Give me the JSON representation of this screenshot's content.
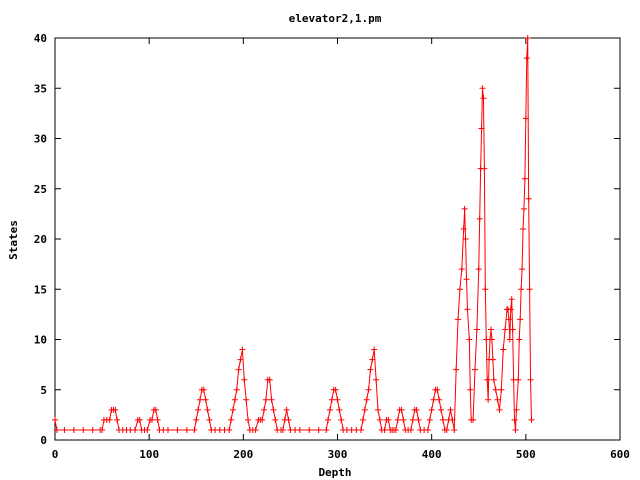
{
  "chart_data": {
    "type": "line",
    "title": "elevator2,1.pm",
    "xlabel": "Depth",
    "ylabel": "States",
    "xlim": [
      0,
      600
    ],
    "ylim": [
      0,
      40
    ],
    "xticks": [
      0,
      100,
      200,
      300,
      400,
      500,
      600
    ],
    "yticks": [
      0,
      5,
      10,
      15,
      20,
      25,
      30,
      35,
      40
    ],
    "grid": false,
    "legend": "none",
    "series_color": "#ff0000",
    "point_marker": "plus",
    "series": [
      {
        "points": [
          [
            0,
            2
          ],
          [
            2,
            1
          ],
          [
            10,
            1
          ],
          [
            20,
            1
          ],
          [
            30,
            1
          ],
          [
            40,
            1
          ],
          [
            48,
            1
          ],
          [
            50,
            1
          ],
          [
            52,
            2
          ],
          [
            55,
            2
          ],
          [
            58,
            2
          ],
          [
            60,
            3
          ],
          [
            62,
            3
          ],
          [
            64,
            3
          ],
          [
            66,
            2
          ],
          [
            68,
            1
          ],
          [
            72,
            1
          ],
          [
            76,
            1
          ],
          [
            80,
            1
          ],
          [
            85,
            1
          ],
          [
            88,
            2
          ],
          [
            90,
            2
          ],
          [
            92,
            1
          ],
          [
            95,
            1
          ],
          [
            98,
            1
          ],
          [
            101,
            2
          ],
          [
            103,
            2
          ],
          [
            105,
            3
          ],
          [
            107,
            3
          ],
          [
            109,
            2
          ],
          [
            111,
            1
          ],
          [
            115,
            1
          ],
          [
            120,
            1
          ],
          [
            130,
            1
          ],
          [
            140,
            1
          ],
          [
            148,
            1
          ],
          [
            150,
            2
          ],
          [
            152,
            3
          ],
          [
            154,
            4
          ],
          [
            156,
            5
          ],
          [
            158,
            5
          ],
          [
            160,
            4
          ],
          [
            162,
            3
          ],
          [
            164,
            2
          ],
          [
            166,
            1
          ],
          [
            170,
            1
          ],
          [
            175,
            1
          ],
          [
            180,
            1
          ],
          [
            185,
            1
          ],
          [
            187,
            2
          ],
          [
            189,
            3
          ],
          [
            191,
            4
          ],
          [
            193,
            5
          ],
          [
            195,
            7
          ],
          [
            197,
            8
          ],
          [
            199,
            9
          ],
          [
            201,
            6
          ],
          [
            203,
            4
          ],
          [
            205,
            2
          ],
          [
            207,
            1
          ],
          [
            210,
            1
          ],
          [
            213,
            1
          ],
          [
            216,
            2
          ],
          [
            218,
            2
          ],
          [
            220,
            2
          ],
          [
            222,
            3
          ],
          [
            224,
            4
          ],
          [
            226,
            6
          ],
          [
            228,
            6
          ],
          [
            230,
            4
          ],
          [
            232,
            3
          ],
          [
            234,
            2
          ],
          [
            236,
            1
          ],
          [
            240,
            1
          ],
          [
            242,
            1
          ],
          [
            244,
            2
          ],
          [
            246,
            3
          ],
          [
            248,
            2
          ],
          [
            250,
            1
          ],
          [
            255,
            1
          ],
          [
            260,
            1
          ],
          [
            270,
            1
          ],
          [
            280,
            1
          ],
          [
            288,
            1
          ],
          [
            290,
            2
          ],
          [
            292,
            3
          ],
          [
            294,
            4
          ],
          [
            296,
            5
          ],
          [
            298,
            5
          ],
          [
            300,
            4
          ],
          [
            302,
            3
          ],
          [
            304,
            2
          ],
          [
            306,
            1
          ],
          [
            310,
            1
          ],
          [
            315,
            1
          ],
          [
            320,
            1
          ],
          [
            325,
            1
          ],
          [
            327,
            2
          ],
          [
            329,
            3
          ],
          [
            331,
            4
          ],
          [
            333,
            5
          ],
          [
            335,
            7
          ],
          [
            337,
            8
          ],
          [
            339,
            9
          ],
          [
            341,
            6
          ],
          [
            343,
            3
          ],
          [
            345,
            2
          ],
          [
            347,
            1
          ],
          [
            350,
            1
          ],
          [
            352,
            2
          ],
          [
            354,
            2
          ],
          [
            356,
            1
          ],
          [
            358,
            1
          ],
          [
            360,
            1
          ],
          [
            362,
            1
          ],
          [
            364,
            2
          ],
          [
            366,
            3
          ],
          [
            368,
            3
          ],
          [
            370,
            2
          ],
          [
            372,
            1
          ],
          [
            375,
            1
          ],
          [
            378,
            1
          ],
          [
            380,
            2
          ],
          [
            382,
            3
          ],
          [
            384,
            3
          ],
          [
            386,
            2
          ],
          [
            388,
            1
          ],
          [
            392,
            1
          ],
          [
            396,
            1
          ],
          [
            398,
            2
          ],
          [
            400,
            3
          ],
          [
            402,
            4
          ],
          [
            404,
            5
          ],
          [
            406,
            5
          ],
          [
            408,
            4
          ],
          [
            410,
            3
          ],
          [
            412,
            2
          ],
          [
            414,
            1
          ],
          [
            416,
            1
          ],
          [
            418,
            2
          ],
          [
            420,
            3
          ],
          [
            422,
            2
          ],
          [
            424,
            1
          ],
          [
            426,
            7
          ],
          [
            428,
            12
          ],
          [
            430,
            15
          ],
          [
            432,
            17
          ],
          [
            434,
            21
          ],
          [
            435,
            23
          ],
          [
            436,
            20
          ],
          [
            437,
            16
          ],
          [
            438,
            13
          ],
          [
            440,
            10
          ],
          [
            441,
            5
          ],
          [
            442,
            2
          ],
          [
            444,
            2
          ],
          [
            446,
            7
          ],
          [
            448,
            11
          ],
          [
            450,
            17
          ],
          [
            451,
            22
          ],
          [
            452,
            27
          ],
          [
            453,
            31
          ],
          [
            454,
            35
          ],
          [
            455,
            34
          ],
          [
            456,
            27
          ],
          [
            457,
            15
          ],
          [
            458,
            10
          ],
          [
            459,
            6
          ],
          [
            460,
            4
          ],
          [
            461,
            8
          ],
          [
            462,
            10
          ],
          [
            463,
            11
          ],
          [
            464,
            10
          ],
          [
            465,
            8
          ],
          [
            466,
            6
          ],
          [
            468,
            5
          ],
          [
            470,
            4
          ],
          [
            472,
            3
          ],
          [
            474,
            5
          ],
          [
            476,
            9
          ],
          [
            478,
            11
          ],
          [
            480,
            13
          ],
          [
            481,
            13
          ],
          [
            482,
            12
          ],
          [
            483,
            10
          ],
          [
            484,
            13
          ],
          [
            485,
            14
          ],
          [
            486,
            11
          ],
          [
            487,
            6
          ],
          [
            488,
            2
          ],
          [
            489,
            1
          ],
          [
            490,
            3
          ],
          [
            492,
            6
          ],
          [
            493,
            10
          ],
          [
            494,
            12
          ],
          [
            495,
            15
          ],
          [
            496,
            17
          ],
          [
            497,
            21
          ],
          [
            498,
            23
          ],
          [
            499,
            26
          ],
          [
            500,
            32
          ],
          [
            501,
            38
          ],
          [
            502,
            40
          ],
          [
            503,
            24
          ],
          [
            504,
            15
          ],
          [
            505,
            6
          ],
          [
            506,
            2
          ]
        ]
      }
    ]
  }
}
